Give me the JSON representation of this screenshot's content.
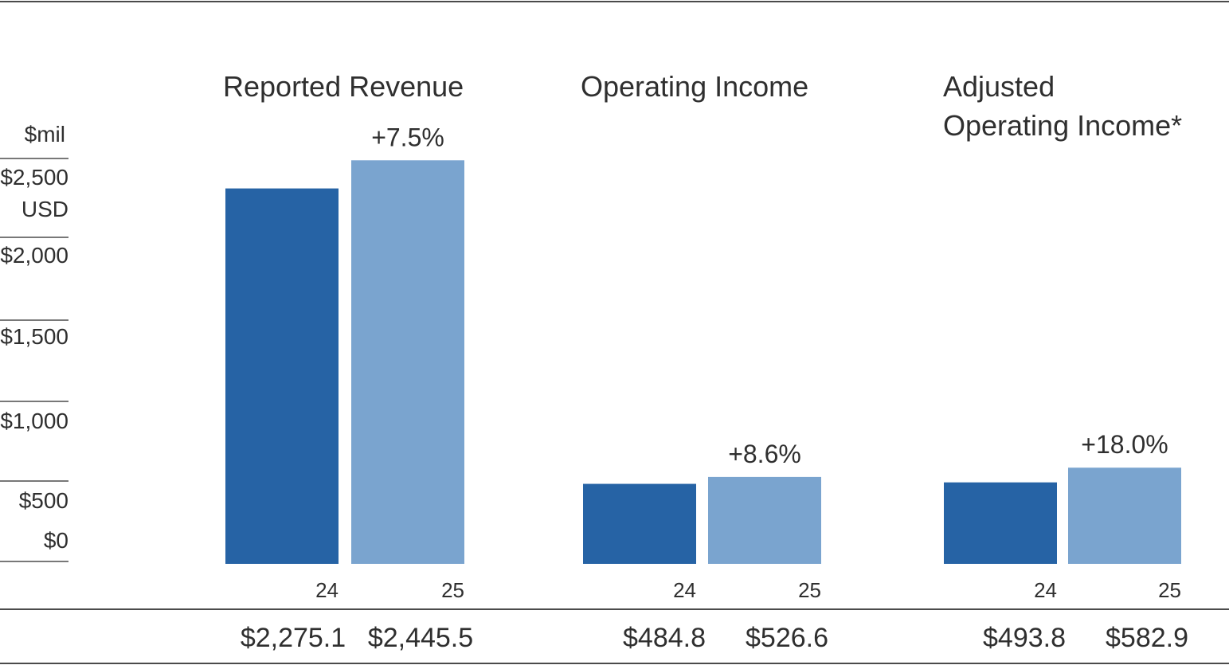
{
  "colors": {
    "series_24": "#2663a5",
    "series_25": "#7aa4cf",
    "rule": "#4b4b4b",
    "text": "#2f2f2f"
  },
  "chart_data": {
    "type": "bar",
    "unit_label": "$mil",
    "currency_label": "USD",
    "y_ticks": [
      "$2,500",
      "$2,000",
      "$1,500",
      "$1,000",
      "$500",
      "$0"
    ],
    "ylim": [
      0,
      2500
    ],
    "categories": [
      {
        "title_lines": [
          "Reported Revenue"
        ],
        "change_label": "+7.5%",
        "values": [
          2275.1,
          2445.5
        ],
        "value_labels": [
          "$2,275.1",
          "$2,445.5"
        ],
        "year_labels": [
          "24",
          "25"
        ]
      },
      {
        "title_lines": [
          "Operating Income"
        ],
        "change_label": "+8.6%",
        "values": [
          484.8,
          526.6
        ],
        "value_labels": [
          "$484.8",
          "$526.6"
        ],
        "year_labels": [
          "24",
          "25"
        ]
      },
      {
        "title_lines": [
          "Adjusted",
          "Operating Income*"
        ],
        "change_label": "+18.0%",
        "values": [
          493.8,
          582.9
        ],
        "value_labels": [
          "$493.8",
          "$582.9"
        ],
        "year_labels": [
          "24",
          "25"
        ]
      }
    ]
  }
}
